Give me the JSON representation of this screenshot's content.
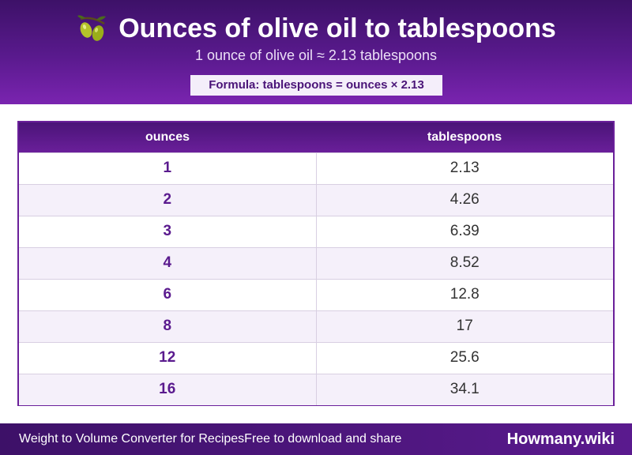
{
  "header": {
    "icon": "olive-icon",
    "title": "Ounces of olive oil to tablespoons",
    "subtitle": "1 ounce of olive oil ≈ 2.13 tablespoons",
    "formula": "Formula: tablespoons = ounces × 2.13"
  },
  "table": {
    "columns": [
      "ounces",
      "tablespoons"
    ],
    "rows": [
      {
        "ounces": "1",
        "tablespoons": "2.13"
      },
      {
        "ounces": "2",
        "tablespoons": "4.26"
      },
      {
        "ounces": "3",
        "tablespoons": "6.39"
      },
      {
        "ounces": "4",
        "tablespoons": "8.52"
      },
      {
        "ounces": "6",
        "tablespoons": "12.8"
      },
      {
        "ounces": "8",
        "tablespoons": "17"
      },
      {
        "ounces": "12",
        "tablespoons": "25.6"
      },
      {
        "ounces": "16",
        "tablespoons": "34.1"
      }
    ]
  },
  "footer": {
    "left_text": "Weight to Volume Converter for RecipesFree to download and share",
    "brand": "Howmany.wiki"
  },
  "colors": {
    "primary": "#5a1a8e",
    "header_dark": "#3d1168",
    "row_alt": "#f5f0fa",
    "olive": "#a8b820"
  }
}
